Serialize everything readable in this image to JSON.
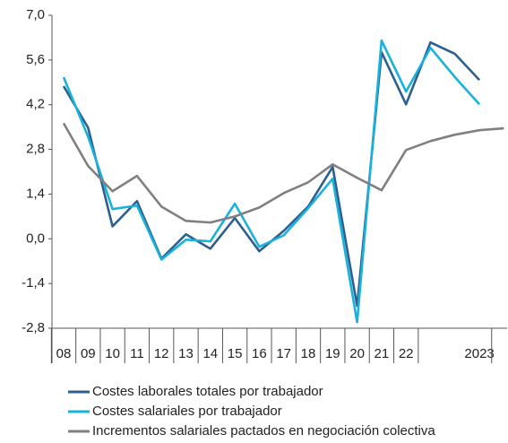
{
  "chart_data": {
    "type": "line",
    "categories": [
      "08",
      "09",
      "10",
      "11",
      "12",
      "13",
      "14",
      "15",
      "16",
      "17",
      "18",
      "19",
      "20",
      "21",
      "22",
      null,
      null,
      "2023",
      null
    ],
    "series": [
      {
        "name": "Costes laborales totales por trabajador",
        "color": "#2d5f8f",
        "values": [
          4.78,
          3.48,
          0.39,
          1.18,
          -0.62,
          0.14,
          -0.31,
          0.65,
          -0.39,
          0.25,
          1.01,
          2.25,
          -2.1,
          5.84,
          4.21,
          6.15,
          5.79,
          4.97,
          null
        ]
      },
      {
        "name": "Costes salariales por trabajador",
        "color": "#19b2da",
        "values": [
          5.06,
          3.2,
          0.93,
          1.04,
          -0.65,
          -0.03,
          -0.08,
          1.1,
          -0.25,
          0.11,
          0.96,
          1.88,
          -2.61,
          6.21,
          4.61,
          5.98,
          5.06,
          4.21,
          null
        ]
      },
      {
        "name": "Incrementos salariales pactados en negociación colectiva",
        "color": "#808080",
        "values": [
          3.62,
          2.28,
          1.49,
          1.97,
          1.01,
          0.56,
          0.51,
          0.7,
          0.98,
          1.43,
          1.77,
          2.33,
          1.91,
          1.52,
          2.78,
          3.06,
          3.26,
          3.4,
          3.46
        ]
      }
    ],
    "ylim": [
      -2.8,
      7.0
    ],
    "yticks": [
      {
        "value": -2.8,
        "label": "-2,8"
      },
      {
        "value": -1.4,
        "label": "-1,4"
      },
      {
        "value": 0,
        "label": "0,0"
      },
      {
        "value": 1.4,
        "label": "1,4"
      },
      {
        "value": 2.8,
        "label": "2,8"
      },
      {
        "value": 4.2,
        "label": "4,2"
      },
      {
        "value": 5.6,
        "label": "5,6"
      },
      {
        "value": 7.0,
        "label": "7,0"
      }
    ],
    "legend": "bottom"
  }
}
